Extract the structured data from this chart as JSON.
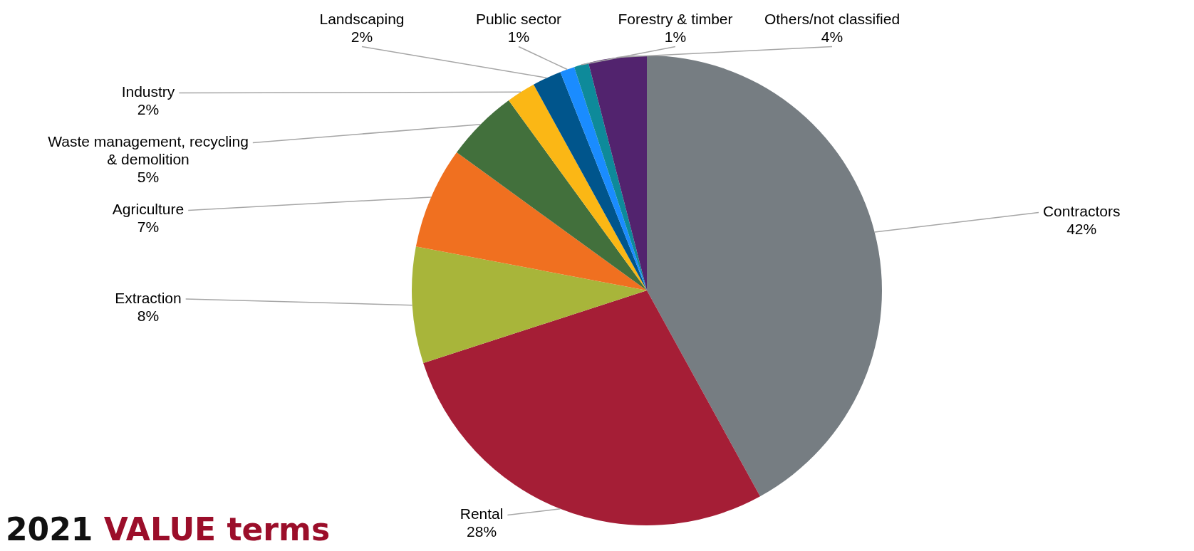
{
  "chart_data": {
    "type": "pie",
    "title": "2021 VALUE terms",
    "categories": [
      "Contractors",
      "Rental",
      "Extraction",
      "Agriculture",
      "Waste management, recycling & demolition",
      "Industry",
      "Landscaping",
      "Public sector",
      "Forestry & timber",
      "Others/not classified"
    ],
    "values": [
      42,
      28,
      8,
      7,
      5,
      2,
      2,
      1,
      1,
      4
    ],
    "colors": [
      "#767d82",
      "#a51e36",
      "#a8b53a",
      "#f07020",
      "#42703c",
      "#fbb715",
      "#00558c",
      "#1a8cff",
      "#0e8a9a",
      "#52236e"
    ],
    "value_labels": [
      "42%",
      "28%",
      "8%",
      "7%",
      "5%",
      "2%",
      "2%",
      "1%",
      "1%",
      "4%"
    ]
  }
}
